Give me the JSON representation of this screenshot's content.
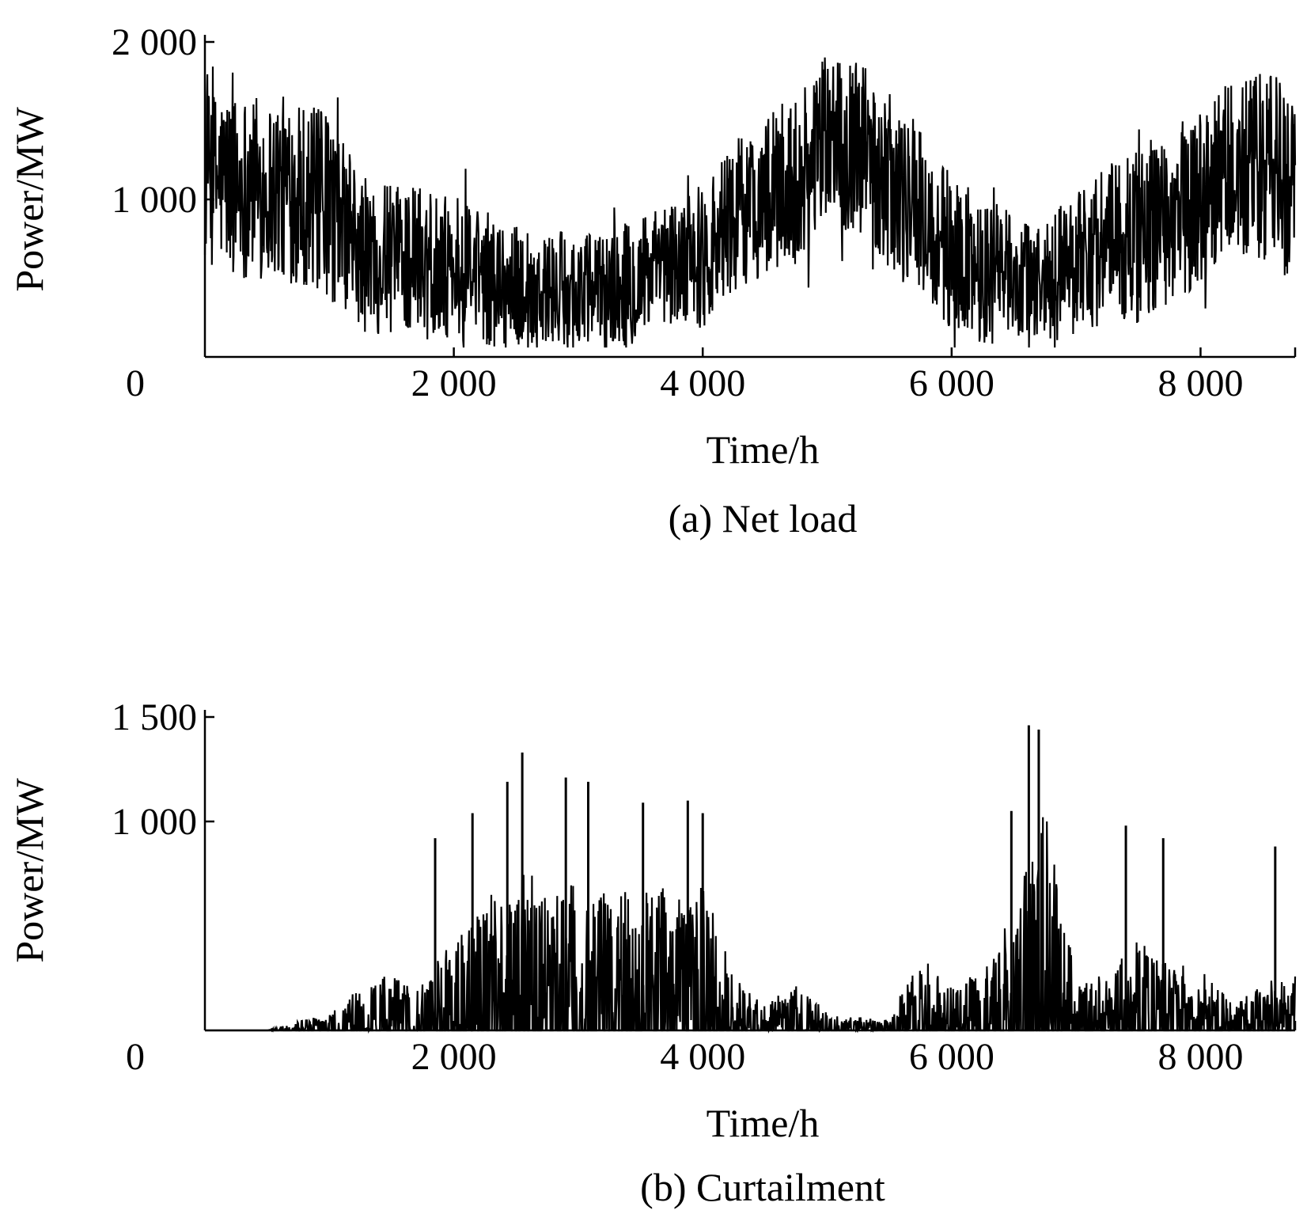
{
  "chart_data": [
    {
      "type": "line",
      "caption": "(a) Net load",
      "xlabel": "Time/h",
      "ylabel": "Power/MW",
      "xlim": [
        0,
        8760
      ],
      "ylim": [
        0,
        2000
      ],
      "x_ticks": [
        0,
        2000,
        4000,
        6000,
        8000
      ],
      "x_tick_labels": [
        "0",
        "2 000",
        "4 000",
        "6 000",
        "8 000"
      ],
      "y_ticks": [
        1000,
        2000
      ],
      "y_tick_labels": [
        "1 000",
        "2 000"
      ],
      "grid": false,
      "legend": "none",
      "color": "#000000",
      "series": [
        {
          "x": [
            0,
            250,
            500,
            750,
            1000,
            1250,
            1500,
            1750,
            2000,
            2250,
            2500,
            2750,
            3000,
            3250,
            3500,
            3750,
            4000,
            4250,
            4500,
            4750,
            5000,
            5250,
            5500,
            5750,
            6000,
            6250,
            6500,
            6750,
            7000,
            7250,
            7500,
            7750,
            8000,
            8250,
            8500,
            8750
          ],
          "values": [
            1150,
            1100,
            1080,
            1050,
            950,
            650,
            620,
            650,
            560,
            500,
            440,
            420,
            410,
            430,
            490,
            560,
            650,
            880,
            1020,
            1120,
            1380,
            1350,
            1100,
            920,
            640,
            560,
            480,
            460,
            620,
            720,
            760,
            880,
            1050,
            1150,
            1180,
            1100
          ],
          "band": [
            650,
            700,
            700,
            700,
            700,
            600,
            550,
            550,
            550,
            500,
            480,
            450,
            450,
            450,
            480,
            500,
            550,
            600,
            600,
            650,
            650,
            650,
            650,
            650,
            600,
            550,
            500,
            500,
            550,
            600,
            650,
            650,
            700,
            700,
            750,
            750
          ]
        }
      ]
    },
    {
      "type": "line",
      "caption": "(b) Curtailment",
      "xlabel": "Time/h",
      "ylabel": "Power/MW",
      "xlim": [
        0,
        8760
      ],
      "ylim": [
        0,
        1500
      ],
      "x_ticks": [
        0,
        2000,
        4000,
        6000,
        8000
      ],
      "x_tick_labels": [
        "0",
        "2 000",
        "4 000",
        "6 000",
        "8 000"
      ],
      "y_ticks": [
        1000,
        1500
      ],
      "y_tick_labels": [
        "1 000",
        "1 500"
      ],
      "grid": false,
      "legend": "none",
      "color": "#000000",
      "series": [
        {
          "x": [
            0,
            250,
            500,
            750,
            1000,
            1250,
            1500,
            1750,
            2000,
            2250,
            2500,
            2750,
            3000,
            3250,
            3500,
            3750,
            4000,
            4250,
            4500,
            4750,
            5000,
            5250,
            5500,
            5750,
            6000,
            6250,
            6500,
            6750,
            7000,
            7250,
            7500,
            7750,
            8000,
            8250,
            8500,
            8750
          ],
          "values": [
            0,
            0,
            0,
            40,
            80,
            200,
            260,
            220,
            420,
            580,
            820,
            620,
            700,
            640,
            720,
            620,
            680,
            240,
            120,
            220,
            80,
            60,
            60,
            340,
            200,
            300,
            560,
            1150,
            220,
            260,
            420,
            300,
            300,
            120,
            220,
            250
          ],
          "peaks": [
            {
              "x": 1850,
              "value": 920
            },
            {
              "x": 2150,
              "value": 1040
            },
            {
              "x": 2430,
              "value": 1190
            },
            {
              "x": 2550,
              "value": 1330
            },
            {
              "x": 2900,
              "value": 1210
            },
            {
              "x": 3080,
              "value": 1190
            },
            {
              "x": 3520,
              "value": 1090
            },
            {
              "x": 3880,
              "value": 1100
            },
            {
              "x": 4000,
              "value": 1040
            },
            {
              "x": 6480,
              "value": 1050
            },
            {
              "x": 6620,
              "value": 1460
            },
            {
              "x": 6700,
              "value": 1440
            },
            {
              "x": 7400,
              "value": 980
            },
            {
              "x": 7700,
              "value": 920
            },
            {
              "x": 8600,
              "value": 880
            }
          ]
        }
      ]
    }
  ]
}
